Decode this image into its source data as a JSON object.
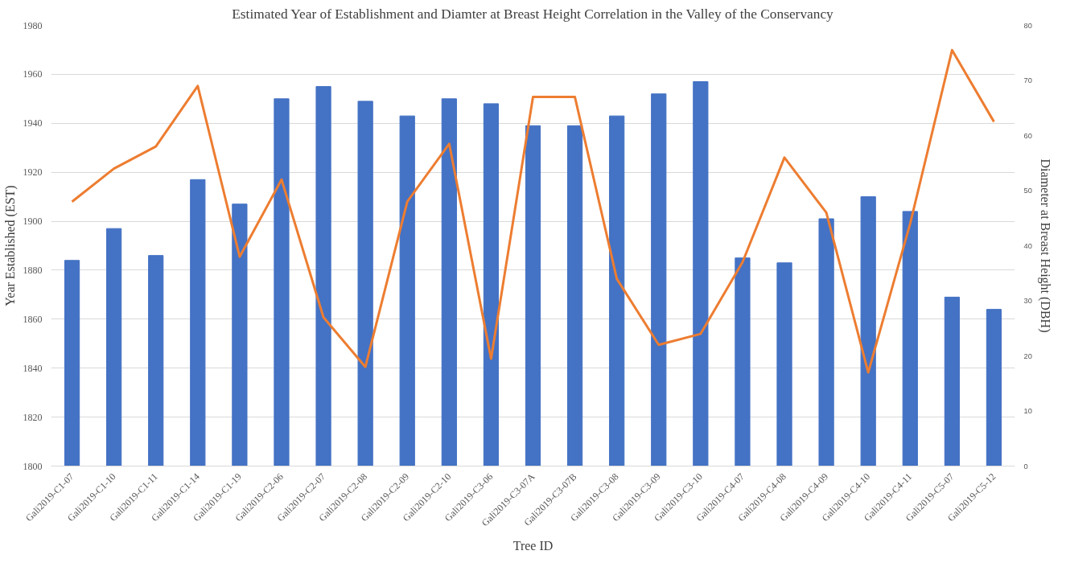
{
  "chart_data": {
    "type": "bar",
    "title": "Estimated Year of Establishment and Diamter at Breast Height Correlation in the Valley of the Conservancy",
    "xlabel": "Tree ID",
    "ylabel": "Year Established (EST)",
    "y2label": "Diameter at Breast Height (DBH)",
    "categories": [
      "Gali2019-C1-07",
      "Gali2019-C1-10",
      "Gali2019-C1-11",
      "Gali2019-C1-14",
      "Gali2019-C1-19",
      "Gali2019-C2-06",
      "Gali2019-C2-07",
      "Gali2019-C2-08",
      "Gali2019-C2-09",
      "Gali2019-C2-10",
      "Gali2019-C3-06",
      "Gali2019-C3-07A",
      "Gali2019-C3-07B",
      "Gali2019-C3-08",
      "Gali2019-C3-09",
      "Gali2019-C3-10",
      "Gali2019-C4-07",
      "Gali2019-C4-08",
      "Gali2019-C4-09",
      "Gali2019-C4-10",
      "Gali2019-C4-11",
      "Gali2019-C5-07",
      "Gali2019-C5-12"
    ],
    "series": [
      {
        "color": "#4472c4",
        "values": [
          1884,
          1897,
          1886,
          1917,
          1907,
          1950,
          1955,
          1949,
          1943,
          1950,
          1948,
          1939,
          1939,
          1943,
          1952,
          1957,
          1885,
          1883,
          1901,
          1910,
          1904,
          1869,
          1864
        ]
      },
      {
        "type": "line",
        "axis": "y2",
        "color": "#ed7d31",
        "values": [
          48,
          54,
          58,
          69,
          38,
          52,
          27,
          18,
          48,
          58.5,
          19.5,
          67,
          67,
          34,
          22,
          24,
          37,
          56,
          46,
          17,
          44,
          75.5,
          62.5
        ]
      }
    ],
    "ylim": [
      1800,
      1980
    ],
    "yticks": [
      1800,
      1820,
      1840,
      1860,
      1880,
      1900,
      1920,
      1940,
      1960,
      1980
    ],
    "y2lim": [
      0,
      80
    ],
    "y2ticks": [
      0,
      10,
      20,
      30,
      40,
      50,
      60,
      70,
      80
    ],
    "grid": "y",
    "marker": "none",
    "line_style": "solid"
  }
}
